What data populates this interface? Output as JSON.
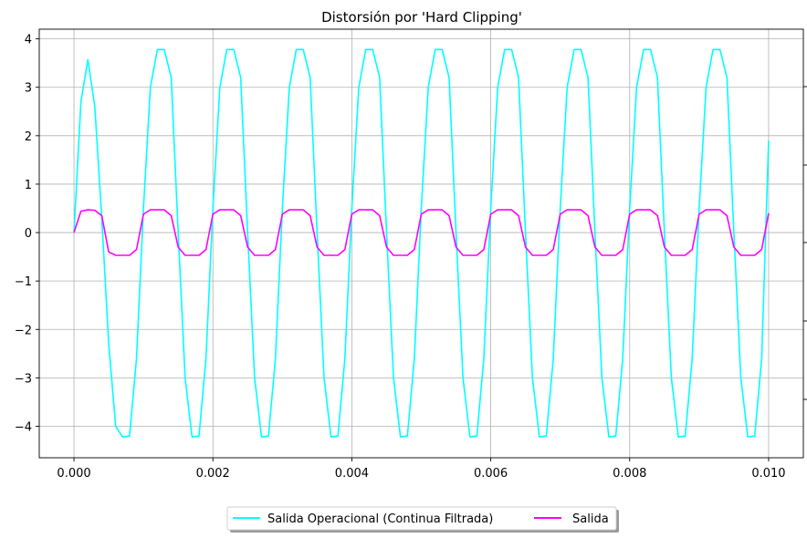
{
  "chart_data": {
    "type": "line",
    "title": "Distorsión por 'Hard Clipping'",
    "xlabel": "",
    "ylabel": "",
    "xlim": [
      -0.0005,
      0.0105
    ],
    "ylim": [
      -4.65,
      4.2
    ],
    "x_ticks": [
      {
        "value": 0.0,
        "label": "0.000"
      },
      {
        "value": 0.002,
        "label": "0.002"
      },
      {
        "value": 0.004,
        "label": "0.004"
      },
      {
        "value": 0.006,
        "label": "0.006"
      },
      {
        "value": 0.008,
        "label": "0.008"
      },
      {
        "value": 0.01,
        "label": "0.010"
      }
    ],
    "y_ticks": [
      {
        "value": 4,
        "label": "4"
      },
      {
        "value": 3,
        "label": "3"
      },
      {
        "value": 2,
        "label": "2"
      },
      {
        "value": 1,
        "label": "1"
      },
      {
        "value": 0,
        "label": "0"
      },
      {
        "value": -1,
        "label": "−1"
      },
      {
        "value": -2,
        "label": "−2"
      },
      {
        "value": -3,
        "label": "−3"
      },
      {
        "value": -4,
        "label": "−4"
      }
    ],
    "grid": true,
    "legend_position": "bottom-center",
    "series": [
      {
        "name": "Salida Operacional (Continua Filtrada)",
        "color": "#00ffff",
        "x": [
          0.0,
          0.0001,
          0.0002,
          0.0003,
          0.0004,
          0.0005,
          0.0006,
          0.0007,
          0.0008,
          0.0009,
          0.001,
          0.0011,
          0.0012,
          0.0013,
          0.0014,
          0.0015,
          0.0016,
          0.0017,
          0.0018,
          0.0019,
          0.002,
          0.0021,
          0.0022,
          0.0023,
          0.0024,
          0.0025,
          0.0026,
          0.0027,
          0.0028,
          0.0029,
          0.003,
          0.0031,
          0.0032,
          0.0033,
          0.0034,
          0.0035,
          0.0036,
          0.0037,
          0.0038,
          0.0039,
          0.004,
          0.0041,
          0.0042,
          0.0043,
          0.0044,
          0.0045,
          0.0046,
          0.0047,
          0.0048,
          0.0049,
          0.005,
          0.0051,
          0.0052,
          0.0053,
          0.0054,
          0.0055,
          0.0056,
          0.0057,
          0.0058,
          0.0059,
          0.006,
          0.0061,
          0.0062,
          0.0063,
          0.0064,
          0.0065,
          0.0066,
          0.0067,
          0.0068,
          0.0069,
          0.007,
          0.0071,
          0.0072,
          0.0073,
          0.0074,
          0.0075,
          0.0076,
          0.0077,
          0.0078,
          0.0079,
          0.008,
          0.0081,
          0.0082,
          0.0083,
          0.0084,
          0.0085,
          0.0086,
          0.0087,
          0.0088,
          0.0089,
          0.009,
          0.0091,
          0.0092,
          0.0093,
          0.0094,
          0.0095,
          0.0096,
          0.0097,
          0.0098,
          0.0099,
          0.01
        ],
        "y": [
          0.0,
          2.7,
          3.57,
          2.6,
          0.3,
          -2.3,
          -4.0,
          -4.22,
          -4.2,
          -2.6,
          0.5,
          3.0,
          3.78,
          3.78,
          3.2,
          0.0,
          -3.0,
          -4.22,
          -4.2,
          -2.6,
          0.5,
          3.0,
          3.78,
          3.78,
          3.2,
          0.0,
          -3.0,
          -4.22,
          -4.2,
          -2.6,
          0.5,
          3.0,
          3.78,
          3.78,
          3.2,
          0.0,
          -3.0,
          -4.22,
          -4.2,
          -2.6,
          0.5,
          3.0,
          3.78,
          3.78,
          3.2,
          0.0,
          -3.0,
          -4.22,
          -4.2,
          -2.6,
          0.5,
          3.0,
          3.78,
          3.78,
          3.2,
          0.0,
          -3.0,
          -4.22,
          -4.2,
          -2.6,
          0.5,
          3.0,
          3.78,
          3.78,
          3.2,
          0.0,
          -3.0,
          -4.22,
          -4.2,
          -2.6,
          0.5,
          3.0,
          3.78,
          3.78,
          3.2,
          0.0,
          -3.0,
          -4.22,
          -4.2,
          -2.6,
          0.5,
          3.0,
          3.78,
          3.78,
          3.2,
          0.0,
          -3.0,
          -4.22,
          -4.2,
          -2.6,
          0.5,
          3.0,
          3.78,
          3.78,
          3.2,
          0.0,
          -3.0,
          -4.22,
          -4.2,
          -2.6,
          1.9
        ]
      },
      {
        "name": "Salida",
        "color": "#ff00ff",
        "x": [
          0.0,
          0.0001,
          0.0002,
          0.0003,
          0.0004,
          0.0005,
          0.0006,
          0.0007,
          0.0008,
          0.0009,
          0.001,
          0.0011,
          0.0012,
          0.0013,
          0.0014,
          0.0015,
          0.0016,
          0.0017,
          0.0018,
          0.0019,
          0.002,
          0.0021,
          0.0022,
          0.0023,
          0.0024,
          0.0025,
          0.0026,
          0.0027,
          0.0028,
          0.0029,
          0.003,
          0.0031,
          0.0032,
          0.0033,
          0.0034,
          0.0035,
          0.0036,
          0.0037,
          0.0038,
          0.0039,
          0.004,
          0.0041,
          0.0042,
          0.0043,
          0.0044,
          0.0045,
          0.0046,
          0.0047,
          0.0048,
          0.0049,
          0.005,
          0.0051,
          0.0052,
          0.0053,
          0.0054,
          0.0055,
          0.0056,
          0.0057,
          0.0058,
          0.0059,
          0.006,
          0.0061,
          0.0062,
          0.0063,
          0.0064,
          0.0065,
          0.0066,
          0.0067,
          0.0068,
          0.0069,
          0.007,
          0.0071,
          0.0072,
          0.0073,
          0.0074,
          0.0075,
          0.0076,
          0.0077,
          0.0078,
          0.0079,
          0.008,
          0.0081,
          0.0082,
          0.0083,
          0.0084,
          0.0085,
          0.0086,
          0.0087,
          0.0088,
          0.0089,
          0.009,
          0.0091,
          0.0092,
          0.0093,
          0.0094,
          0.0095,
          0.0096,
          0.0097,
          0.0098,
          0.0099,
          0.01
        ],
        "y": [
          0.0,
          0.44,
          0.47,
          0.46,
          0.35,
          -0.4,
          -0.47,
          -0.47,
          -0.47,
          -0.35,
          0.38,
          0.47,
          0.47,
          0.47,
          0.35,
          -0.3,
          -0.47,
          -0.47,
          -0.47,
          -0.35,
          0.38,
          0.47,
          0.47,
          0.47,
          0.35,
          -0.3,
          -0.47,
          -0.47,
          -0.47,
          -0.35,
          0.38,
          0.47,
          0.47,
          0.47,
          0.35,
          -0.3,
          -0.47,
          -0.47,
          -0.47,
          -0.35,
          0.38,
          0.47,
          0.47,
          0.47,
          0.35,
          -0.3,
          -0.47,
          -0.47,
          -0.47,
          -0.35,
          0.38,
          0.47,
          0.47,
          0.47,
          0.35,
          -0.3,
          -0.47,
          -0.47,
          -0.47,
          -0.35,
          0.38,
          0.47,
          0.47,
          0.47,
          0.35,
          -0.3,
          -0.47,
          -0.47,
          -0.47,
          -0.35,
          0.38,
          0.47,
          0.47,
          0.47,
          0.35,
          -0.3,
          -0.47,
          -0.47,
          -0.47,
          -0.35,
          0.38,
          0.47,
          0.47,
          0.47,
          0.35,
          -0.3,
          -0.47,
          -0.47,
          -0.47,
          -0.35,
          0.38,
          0.47,
          0.47,
          0.47,
          0.35,
          -0.3,
          -0.47,
          -0.47,
          -0.47,
          -0.35,
          0.4
        ]
      }
    ]
  }
}
